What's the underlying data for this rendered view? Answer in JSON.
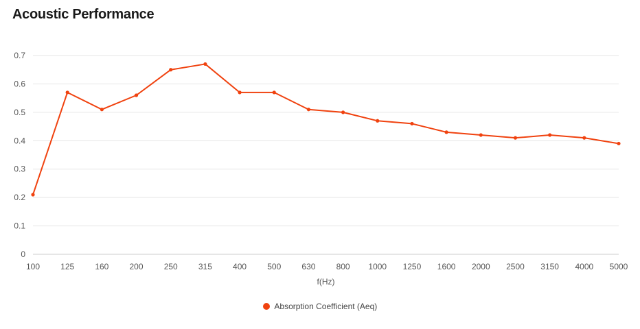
{
  "title": "Acoustic Performance",
  "chart_data": {
    "type": "line",
    "title": "Acoustic Performance",
    "xlabel": "f(Hz)",
    "ylabel": "",
    "categories": [
      "100",
      "125",
      "160",
      "200",
      "250",
      "315",
      "400",
      "500",
      "630",
      "800",
      "1000",
      "1250",
      "1600",
      "2000",
      "2500",
      "3150",
      "4000",
      "5000"
    ],
    "series": [
      {
        "name": "Absorption Coefficient (Aeq)",
        "color": "#f0420f",
        "values": [
          0.21,
          0.57,
          0.51,
          0.56,
          0.65,
          0.67,
          0.57,
          0.57,
          0.51,
          0.5,
          0.47,
          0.46,
          0.43,
          0.42,
          0.41,
          0.42,
          0.41,
          0.39
        ]
      }
    ],
    "ylim": [
      0,
      0.7
    ],
    "yticks": [
      "0",
      "0.1",
      "0.2",
      "0.3",
      "0.4",
      "0.5",
      "0.6",
      "0.7"
    ],
    "grid": true,
    "legend": "bottom-center"
  }
}
